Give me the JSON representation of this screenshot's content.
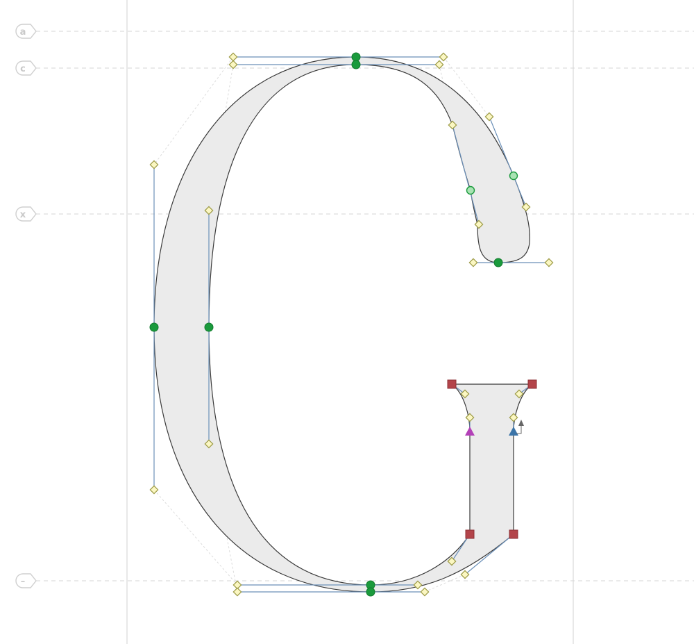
{
  "editor": {
    "glyph_name": "G",
    "guidelines": [
      {
        "key": "ascender",
        "label": "a"
      },
      {
        "key": "cap-height",
        "label": "c"
      },
      {
        "key": "x-height",
        "label": "x"
      },
      {
        "key": "baseline",
        "label": "–"
      }
    ],
    "colors": {
      "glyph_fill": "#ebebeb",
      "outline": "#3a3a3a",
      "guide": "#d6d6d6",
      "metric_line": "#d2d2d2",
      "handle": "#6a8fb8",
      "smooth_node": "#1a9a3c",
      "corner_node": "#b3444a",
      "start_marker_pink": "#b341b8",
      "start_marker_blue": "#3b74a8",
      "off_curve_fill": "#fbf7c2",
      "off_curve_stroke": "#9c9a46"
    },
    "node_icons": {
      "smooth": "green-circle-node-icon",
      "corner": "red-square-node-icon",
      "off_curve": "yellow-diamond-handle-icon",
      "start": "triangle-start-point-icon"
    }
  }
}
